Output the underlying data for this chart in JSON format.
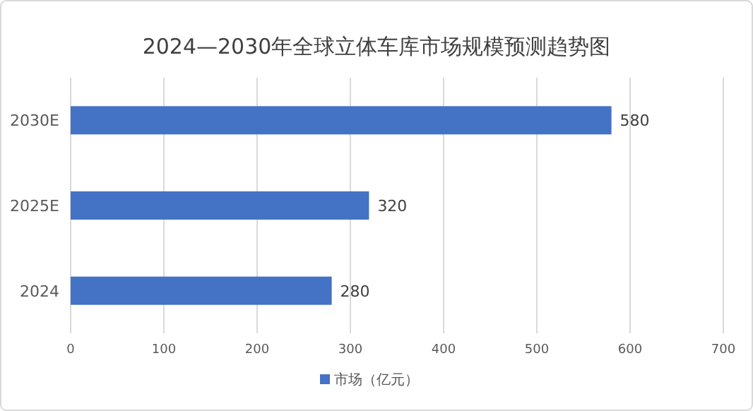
{
  "chart_data": {
    "type": "bar",
    "orientation": "horizontal",
    "title": "2024—2030年全球立体车库市场规模预测趋势图",
    "categories": [
      "2030E",
      "2025E",
      "2024"
    ],
    "series": [
      {
        "name": "市场（亿元）",
        "color": "#4472c4",
        "values": [
          580,
          320,
          280
        ]
      }
    ],
    "xlim": [
      0,
      700
    ],
    "xticks": [
      0,
      100,
      200,
      300,
      400,
      500,
      600,
      700
    ],
    "grid": "x",
    "legend": "bottom",
    "data_labels": true
  }
}
